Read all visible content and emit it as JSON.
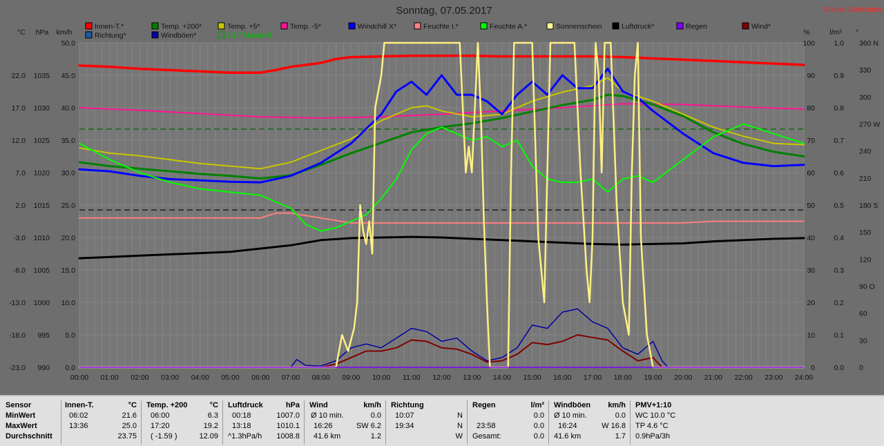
{
  "title": "Sonntag, 07.05.2017",
  "station": "Station Göritzhain",
  "unit_labels": {
    "temp": "°C",
    "pressure": "hPa",
    "wind": "km/h",
    "percent": "%",
    "rain": "l/m²",
    "deg": "°"
  },
  "legend": [
    {
      "label": "Innen-T.*",
      "color": "#ff0000"
    },
    {
      "label": "Temp. +200*",
      "color": "#008000"
    },
    {
      "label": "Temp. +5*",
      "color": "#c8c800"
    },
    {
      "label": "Temp. -5*",
      "color": "#ff1493"
    },
    {
      "label": "Windchill X*",
      "color": "#0000ff"
    },
    {
      "label": "Feuchte I.*",
      "color": "#ff8080"
    },
    {
      "label": "Feuchte A.*",
      "color": "#00ff00"
    },
    {
      "label": "Sonnenschein",
      "color": "#ffff99"
    },
    {
      "label": "Luftdruck*",
      "color": "#000000"
    },
    {
      "label": "Regen",
      "color": "#8000ff"
    },
    {
      "label": "Wind*",
      "color": "#800000"
    },
    {
      "label": "Richtung*",
      "color": "#1e5aa0"
    },
    {
      "label": "Windböen*",
      "color": "#0000a0"
    },
    {
      "label": "13.7 Monat-Ø",
      "color": "#00a000",
      "outline": true
    }
  ],
  "chart_data": {
    "type": "line",
    "title": "Sonntag, 07.05.2017",
    "x_ticks": [
      "00:00",
      "01:00",
      "02:00",
      "03:00",
      "04:00",
      "05:00",
      "06:00",
      "07:00",
      "08:00",
      "09:00",
      "10:00",
      "11:00",
      "12:00",
      "13:00",
      "14:00",
      "15:00",
      "16:00",
      "17:00",
      "18:00",
      "19:00",
      "20:00",
      "21:00",
      "22:00",
      "23:00",
      "24:00"
    ],
    "xlim": [
      0,
      24
    ],
    "axes": {
      "temp": {
        "ticks": [
          "-23.0",
          "-18.0",
          "-13.0",
          "-8.0",
          "-3.0",
          "2.0",
          "7.0",
          "12.0",
          "17.0",
          "22.0"
        ],
        "ylim": [
          -23,
          27
        ]
      },
      "pressure": {
        "ticks": [
          "990",
          "995",
          "1000",
          "1005",
          "1010",
          "1015",
          "1020",
          "1025",
          "1030",
          "1035"
        ],
        "ylim": [
          990,
          1040
        ]
      },
      "wind": {
        "ticks": [
          "0.0",
          "5.0",
          "10.0",
          "15.0",
          "20.0",
          "25.0",
          "30.0",
          "35.0",
          "40.0",
          "45.0",
          "50.0"
        ],
        "ylim": [
          0,
          50
        ]
      },
      "percent": {
        "ticks": [
          "0",
          "10",
          "20",
          "30",
          "40",
          "50",
          "60",
          "70",
          "80",
          "90",
          "100"
        ],
        "ylim": [
          0,
          100
        ]
      },
      "rain": {
        "ticks": [
          "0.0",
          "0.1",
          "0.2",
          "0.3",
          "0.4",
          "0.5",
          "0.6",
          "0.7",
          "0.8",
          "0.9",
          "1.0"
        ],
        "ylim": [
          0,
          1
        ]
      },
      "direction": {
        "ticks": [
          "0",
          "30",
          "60",
          "90 O",
          "120",
          "150",
          "180 S",
          "210",
          "240",
          "270 W",
          "300",
          "330",
          "360 N"
        ],
        "ylim": [
          0,
          360
        ]
      }
    },
    "reference_lines": [
      {
        "name": "13.7 Monat-Ø",
        "axis": "temp",
        "value": 13.7,
        "color": "#006400"
      },
      {
        "name": "",
        "axis": "percent",
        "value": 48.5,
        "color": "#000000"
      }
    ],
    "series": [
      {
        "name": "Innen-T.*",
        "axis": "temp",
        "color": "#ff0000",
        "width": 3.5,
        "x": [
          0,
          1,
          2,
          3,
          4,
          5,
          6,
          6.5,
          7,
          8,
          8.5,
          9,
          10,
          11,
          12,
          13,
          14,
          15,
          16,
          17,
          18,
          19,
          20,
          21,
          22,
          23,
          24
        ],
        "y": [
          23.5,
          23.3,
          23.0,
          22.8,
          22.6,
          22.4,
          22.4,
          22.8,
          23.3,
          23.9,
          24.5,
          24.8,
          24.9,
          25.0,
          25.0,
          25.0,
          24.9,
          24.9,
          24.9,
          24.9,
          24.8,
          24.6,
          24.4,
          24.2,
          24.0,
          23.8,
          23.6
        ]
      },
      {
        "name": "Temp. -5*",
        "axis": "temp",
        "color": "#ff1493",
        "width": 2,
        "x": [
          0,
          2,
          4,
          6,
          8,
          10,
          12,
          14,
          16,
          18,
          20,
          22,
          24
        ],
        "y": [
          17.0,
          16.6,
          16.1,
          15.6,
          15.4,
          15.6,
          16.0,
          16.5,
          17.0,
          17.6,
          17.5,
          17.1,
          16.8
        ]
      },
      {
        "name": "Temp. +5*",
        "axis": "temp",
        "color": "#c8c800",
        "width": 2,
        "x": [
          0,
          1,
          2,
          3,
          4,
          5,
          6,
          7,
          8,
          9,
          10,
          11,
          11.5,
          12,
          13,
          14,
          15,
          16,
          17,
          17.5,
          18,
          19,
          20,
          21,
          22,
          23,
          24
        ],
        "y": [
          10.8,
          10.0,
          9.6,
          9.0,
          8.4,
          8.0,
          7.6,
          8.6,
          10.4,
          12.2,
          15.0,
          17.0,
          17.3,
          16.5,
          15.6,
          16.0,
          18.0,
          19.4,
          20.4,
          21.6,
          19.5,
          18.0,
          16.0,
          14.0,
          12.6,
          11.5,
          11.3
        ]
      },
      {
        "name": "Temp. +200*",
        "axis": "temp",
        "color": "#008000",
        "width": 3,
        "x": [
          0,
          1,
          2,
          3,
          4,
          5,
          6,
          7,
          8,
          9,
          10,
          11,
          12,
          13,
          14,
          15,
          16,
          17,
          17.5,
          18,
          19,
          20,
          21,
          22,
          23,
          24
        ],
        "y": [
          8.6,
          8.0,
          7.6,
          7.2,
          6.8,
          6.5,
          6.1,
          6.6,
          8.2,
          10.0,
          11.6,
          13.2,
          14.0,
          14.6,
          15.4,
          16.4,
          17.4,
          18.2,
          19.0,
          18.8,
          17.5,
          15.7,
          13.2,
          11.4,
          10.2,
          9.5
        ]
      },
      {
        "name": "Windchill X*",
        "axis": "temp",
        "color": "#0000ff",
        "width": 3,
        "x": [
          0,
          1,
          2,
          3,
          4,
          5,
          6,
          7,
          8,
          9,
          10,
          10.5,
          11,
          11.5,
          12,
          12.5,
          13,
          13.5,
          14,
          14.5,
          15,
          15.5,
          16,
          16.5,
          17,
          17.5,
          18,
          18.5,
          19,
          20,
          21,
          22,
          23,
          24
        ],
        "y": [
          7.5,
          7.2,
          6.5,
          6.0,
          5.8,
          5.6,
          5.5,
          6.5,
          8.5,
          11.5,
          16.0,
          19.5,
          21.0,
          19.0,
          22.0,
          19.0,
          19.0,
          18.0,
          16.0,
          19.0,
          21.0,
          19.0,
          22.0,
          20.0,
          20.0,
          23.0,
          19.5,
          18.5,
          16.5,
          13.0,
          10.0,
          8.5,
          8.0,
          8.2
        ]
      },
      {
        "name": "Feuchte I.*",
        "axis": "percent",
        "color": "#ff8080",
        "width": 2,
        "x": [
          0,
          5,
          6,
          6.5,
          7,
          8,
          9,
          10,
          12,
          14,
          16,
          18,
          20,
          21,
          22,
          24
        ],
        "y": [
          46,
          46,
          46,
          47.5,
          47.5,
          46,
          44.5,
          44.5,
          44.5,
          44.5,
          44.5,
          44.5,
          44.5,
          45,
          45,
          45
        ]
      },
      {
        "name": "Feuchte A.*",
        "axis": "percent",
        "color": "#00ff00",
        "width": 2,
        "x": [
          0,
          1,
          2,
          3,
          4,
          5,
          6,
          7,
          7.5,
          8,
          8.5,
          9,
          9.5,
          10,
          10.5,
          11,
          11.5,
          12,
          12.5,
          13,
          13.5,
          14,
          14.5,
          15,
          15.5,
          16,
          16.5,
          17,
          17.5,
          18,
          18.5,
          19,
          20,
          21,
          22,
          23,
          24
        ],
        "y": [
          69,
          64,
          60,
          57,
          55,
          54,
          53,
          49,
          44,
          42,
          43,
          45,
          47,
          52,
          58,
          67,
          72,
          74,
          72,
          70,
          71,
          68,
          70,
          62,
          58,
          57,
          57,
          58,
          54,
          58,
          59,
          57,
          64,
          71,
          75,
          72,
          69
        ]
      },
      {
        "name": "Luftdruck*",
        "axis": "pressure",
        "color": "#000000",
        "width": 3,
        "x": [
          0,
          1,
          2,
          3,
          4,
          5,
          6,
          7,
          8,
          9,
          10,
          11,
          12,
          13,
          14,
          15,
          16,
          17,
          18,
          19,
          20,
          21,
          22,
          23,
          24
        ],
        "y": [
          1006.8,
          1007.0,
          1007.2,
          1007.4,
          1007.6,
          1007.8,
          1008.3,
          1008.8,
          1009.6,
          1009.9,
          1010.0,
          1010.1,
          1010.0,
          1009.8,
          1009.6,
          1009.4,
          1009.2,
          1009.0,
          1008.9,
          1009.0,
          1009.1,
          1009.4,
          1009.6,
          1009.8,
          1009.9
        ]
      },
      {
        "name": "Windböen*",
        "axis": "wind",
        "color": "#0000a0",
        "width": 1.5,
        "x": [
          7,
          7.2,
          7.5,
          8,
          8.5,
          9,
          9.5,
          10,
          10.5,
          11,
          11.5,
          12,
          12.5,
          13,
          13.5,
          14,
          14.5,
          15,
          15.5,
          16,
          16.5,
          17,
          17.5,
          18,
          18.5,
          19,
          19.3,
          19.5
        ],
        "y": [
          0,
          1.2,
          0.3,
          0.2,
          1.0,
          3.0,
          3.6,
          3.0,
          4.5,
          6.0,
          5.5,
          4.0,
          4.5,
          2.5,
          1.0,
          1.5,
          3.0,
          6.5,
          6.0,
          8.5,
          9.0,
          7.0,
          6.0,
          3.0,
          2.0,
          4.0,
          1.0,
          0
        ]
      },
      {
        "name": "Wind*",
        "axis": "wind",
        "color": "#800000",
        "width": 2,
        "x": [
          8,
          8.5,
          9,
          9.5,
          10,
          10.5,
          11,
          11.5,
          12,
          12.5,
          13,
          13.5,
          14,
          14.5,
          15,
          15.5,
          16,
          16.5,
          17,
          17.5,
          18,
          18.5,
          19,
          19.3
        ],
        "y": [
          0,
          0.5,
          1.5,
          2.5,
          2.5,
          3.0,
          4.2,
          4.0,
          3.0,
          2.8,
          2.0,
          0.8,
          1.0,
          2.0,
          3.8,
          3.5,
          4.0,
          5.0,
          4.6,
          4.2,
          2.5,
          1.0,
          1.5,
          0
        ]
      },
      {
        "name": "Sonnenschein",
        "axis": "percent",
        "color": "#fff085",
        "width": 2.5,
        "x": [
          0,
          8.5,
          8.7,
          8.9,
          9.1,
          9.2,
          9.3,
          9.4,
          9.5,
          9.6,
          9.7,
          9.8,
          10.0,
          10.1,
          12.6,
          12.7,
          12.8,
          12.9,
          13.0,
          13.1,
          13.2,
          13.3,
          13.4,
          13.5,
          13.6,
          13.8,
          14.0,
          14.2,
          14.3,
          14.4,
          14.6,
          14.8,
          15.0,
          15.2,
          15.4,
          15.6,
          16.4,
          16.6,
          16.8,
          16.9,
          17.0,
          17.1,
          17.2,
          17.3,
          17.4,
          17.6,
          17.8,
          18.0,
          18.2,
          18.3,
          18.4,
          18.5,
          18.6,
          18.8,
          19.0,
          24
        ],
        "y": [
          0,
          0,
          10,
          5,
          12,
          20,
          50,
          42,
          38,
          45,
          35,
          80,
          90,
          100,
          100,
          80,
          60,
          68,
          60,
          80,
          100,
          78,
          45,
          20,
          0,
          0,
          0,
          0,
          60,
          100,
          100,
          100,
          100,
          40,
          20,
          100,
          100,
          60,
          30,
          20,
          40,
          100,
          90,
          60,
          100,
          100,
          50,
          20,
          10,
          60,
          90,
          100,
          40,
          10,
          0,
          0
        ]
      },
      {
        "name": "Regen",
        "axis": "rain",
        "color": "#8000ff",
        "width": 1.5,
        "x": [
          0,
          24
        ],
        "y": [
          0,
          0
        ]
      }
    ]
  },
  "stats": {
    "row_labels": [
      "Sensor",
      "MinWert",
      "MaxWert",
      "Durchschnitt"
    ],
    "innen": {
      "head": "Innen-T.",
      "unit": "°C",
      "rows": [
        [
          "06:02",
          "21.6"
        ],
        [
          "13:36",
          "25.0"
        ],
        [
          "",
          "23.75"
        ]
      ]
    },
    "temp200": {
      "head": "Temp. +200",
      "unit": "°C",
      "rows": [
        [
          "06:00",
          "6.3"
        ],
        [
          "17:20",
          "19.2"
        ],
        [
          "( -1.59 )",
          "12.09"
        ]
      ]
    },
    "luftdruck": {
      "head": "Luftdruck",
      "unit": "hPa",
      "rows": [
        [
          "00:18",
          "1007.0"
        ],
        [
          "13:18",
          "1010.1"
        ],
        [
          "^1.3hPa/h",
          "1008.8"
        ]
      ]
    },
    "wind": {
      "head": "Wind",
      "unit": "km/h",
      "rows": [
        [
          "Ø 10 min.",
          "0.0"
        ],
        [
          "16:26",
          "SW 6.2"
        ],
        [
          "41.6 km",
          "1.2"
        ]
      ]
    },
    "richtung": {
      "head": "Richtung",
      "unit": "",
      "rows": [
        [
          "10:07",
          "N"
        ],
        [
          "19:34",
          "N"
        ],
        [
          "",
          "W"
        ]
      ]
    },
    "regen": {
      "head": "Regen",
      "unit": "l/m²",
      "rows": [
        [
          "",
          "0.0"
        ],
        [
          "23:58",
          "0.0"
        ],
        [
          "Gesamt:",
          "0.0"
        ]
      ]
    },
    "windboen": {
      "head": "Windböen",
      "unit": "km/h",
      "rows": [
        [
          "Ø 10 min.",
          "0.0"
        ],
        [
          "16:24",
          "W 16.8"
        ],
        [
          "41.6 km",
          "1.7"
        ]
      ]
    },
    "pmv": {
      "head": "PMV+1:10",
      "rows": [
        "WC 10.0 °C",
        "TP 4.6 °C",
        "0.9hPa/3h"
      ]
    }
  }
}
